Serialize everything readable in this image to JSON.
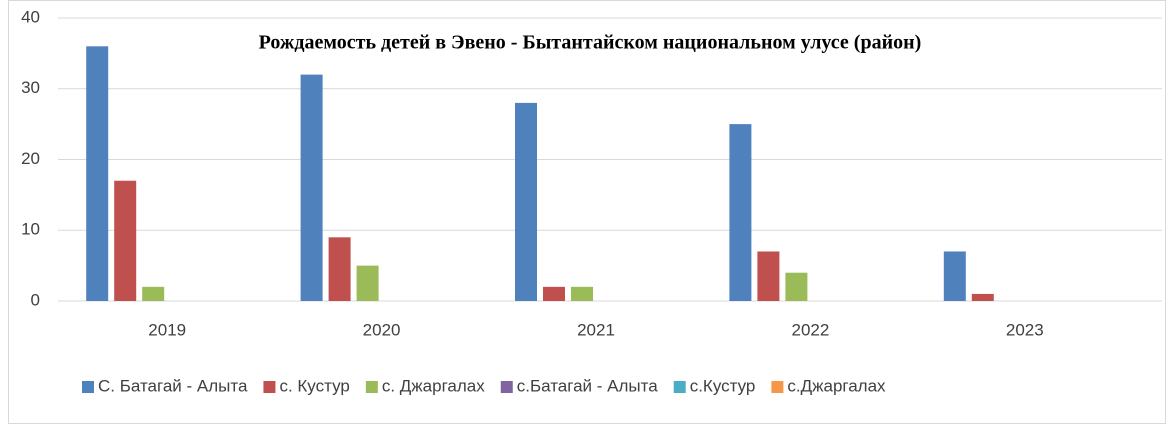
{
  "chart_data": {
    "type": "bar",
    "title": "Рождаемость детей в Эвено - Бытантайском национальном улусе (район)",
    "categories": [
      "2019",
      "2020",
      "2021",
      "2022",
      "2023"
    ],
    "series": [
      {
        "name": "С. Батагай - Алыта",
        "color": "#4f81bd",
        "values": [
          36,
          32,
          28,
          25,
          7
        ]
      },
      {
        "name": "с. Кустур",
        "color": "#c0504d",
        "values": [
          17,
          9,
          2,
          7,
          1
        ]
      },
      {
        "name": "с. Джаргалах",
        "color": "#9bbb59",
        "values": [
          2,
          5,
          2,
          4,
          0
        ]
      },
      {
        "name": "с.Батагай - Алыта",
        "color": "#8064a2",
        "values": [
          null,
          null,
          null,
          null,
          null
        ]
      },
      {
        "name": "с.Кустур",
        "color": "#4bacc6",
        "values": [
          null,
          null,
          null,
          null,
          null
        ]
      },
      {
        "name": "с.Джаргалах",
        "color": "#f79646",
        "values": [
          null,
          null,
          null,
          null,
          null
        ]
      }
    ],
    "ylim": [
      0,
      40
    ],
    "yticks": [
      0,
      10,
      20,
      30,
      40
    ],
    "grid": true,
    "legend": "bottom"
  }
}
